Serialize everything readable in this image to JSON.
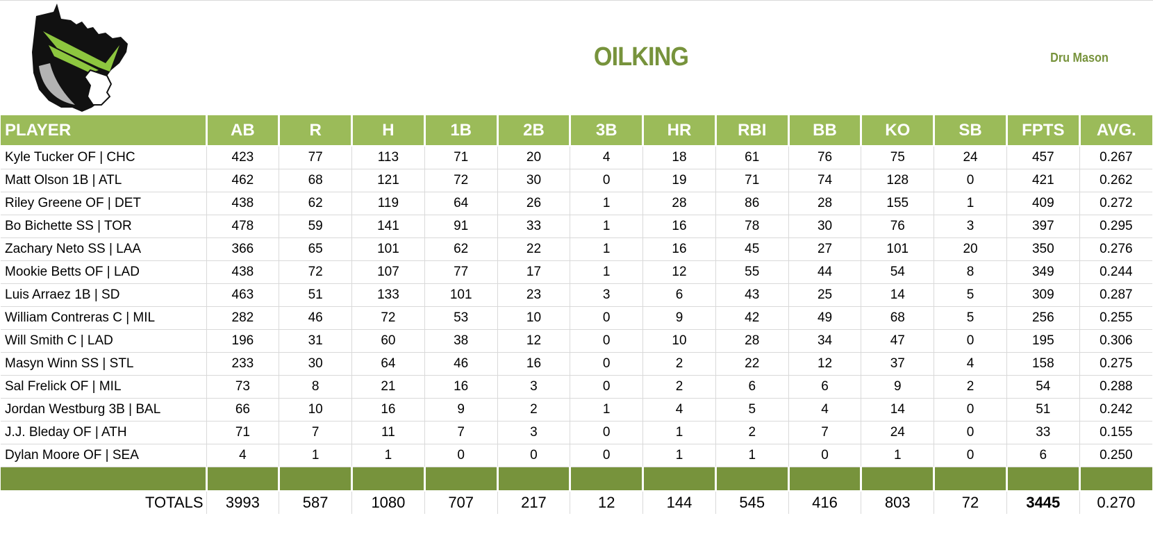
{
  "header": {
    "team_name": "OILKING",
    "owner": "Dru Mason",
    "logo_icon": "king-head-logo-icon"
  },
  "colors": {
    "header_bg": "#9BBB59",
    "accent": "#77933C",
    "grid": "#d9d9d9"
  },
  "table": {
    "columns": [
      "PLAYER",
      "AB",
      "R",
      "H",
      "1B",
      "2B",
      "3B",
      "HR",
      "RBI",
      "BB",
      "KO",
      "SB",
      "FPTS",
      "AVG."
    ],
    "rows": [
      [
        "Kyle Tucker OF | CHC",
        "423",
        "77",
        "113",
        "71",
        "20",
        "4",
        "18",
        "61",
        "76",
        "75",
        "24",
        "457",
        "0.267"
      ],
      [
        "Matt Olson 1B | ATL",
        "462",
        "68",
        "121",
        "72",
        "30",
        "0",
        "19",
        "71",
        "74",
        "128",
        "0",
        "421",
        "0.262"
      ],
      [
        "Riley Greene OF | DET",
        "438",
        "62",
        "119",
        "64",
        "26",
        "1",
        "28",
        "86",
        "28",
        "155",
        "1",
        "409",
        "0.272"
      ],
      [
        "Bo Bichette SS | TOR",
        "478",
        "59",
        "141",
        "91",
        "33",
        "1",
        "16",
        "78",
        "30",
        "76",
        "3",
        "397",
        "0.295"
      ],
      [
        "Zachary Neto SS | LAA",
        "366",
        "65",
        "101",
        "62",
        "22",
        "1",
        "16",
        "45",
        "27",
        "101",
        "20",
        "350",
        "0.276"
      ],
      [
        "Mookie Betts OF | LAD",
        "438",
        "72",
        "107",
        "77",
        "17",
        "1",
        "12",
        "55",
        "44",
        "54",
        "8",
        "349",
        "0.244"
      ],
      [
        "Luis Arraez 1B | SD",
        "463",
        "51",
        "133",
        "101",
        "23",
        "3",
        "6",
        "43",
        "25",
        "14",
        "5",
        "309",
        "0.287"
      ],
      [
        "William Contreras C | MIL",
        "282",
        "46",
        "72",
        "53",
        "10",
        "0",
        "9",
        "42",
        "49",
        "68",
        "5",
        "256",
        "0.255"
      ],
      [
        "Will Smith C | LAD",
        "196",
        "31",
        "60",
        "38",
        "12",
        "0",
        "10",
        "28",
        "34",
        "47",
        "0",
        "195",
        "0.306"
      ],
      [
        "Masyn Winn SS | STL",
        "233",
        "30",
        "64",
        "46",
        "16",
        "0",
        "2",
        "22",
        "12",
        "37",
        "4",
        "158",
        "0.275"
      ],
      [
        "Sal Frelick OF | MIL",
        "73",
        "8",
        "21",
        "16",
        "3",
        "0",
        "2",
        "6",
        "6",
        "9",
        "2",
        "54",
        "0.288"
      ],
      [
        "Jordan Westburg 3B | BAL",
        "66",
        "10",
        "16",
        "9",
        "2",
        "1",
        "4",
        "5",
        "4",
        "14",
        "0",
        "51",
        "0.242"
      ],
      [
        "J.J. Bleday OF | ATH",
        "71",
        "7",
        "11",
        "7",
        "3",
        "0",
        "1",
        "2",
        "7",
        "24",
        "0",
        "33",
        "0.155"
      ],
      [
        "Dylan Moore OF | SEA",
        "4",
        "1",
        "1",
        "0",
        "0",
        "0",
        "1",
        "1",
        "0",
        "1",
        "0",
        "6",
        "0.250"
      ]
    ],
    "totals": [
      "TOTALS",
      "3993",
      "587",
      "1080",
      "707",
      "217",
      "12",
      "144",
      "545",
      "416",
      "803",
      "72",
      "3445",
      "0.270"
    ]
  }
}
